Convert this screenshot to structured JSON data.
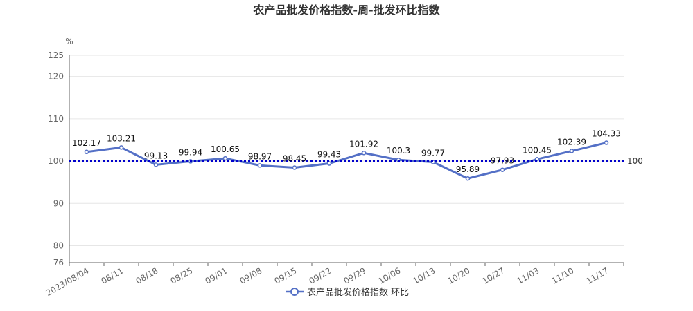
{
  "chart_data": {
    "type": "line",
    "title": "农产品批发价格指数-周-批发环比指数",
    "ylabel": "%",
    "ylim": [
      76,
      125
    ],
    "yticks": [
      76,
      80,
      90,
      100,
      110,
      120,
      125
    ],
    "categories": [
      "2023/08/04",
      "08/11",
      "08/18",
      "08/25",
      "09/01",
      "09/08",
      "09/15",
      "09/22",
      "09/29",
      "10/06",
      "10/13",
      "10/20",
      "10/27",
      "11/03",
      "11/10",
      "11/17"
    ],
    "series": [
      {
        "name": "农产品批发价格指数 环比",
        "color": "#5470c6",
        "values": [
          102.17,
          103.21,
          99.13,
          99.94,
          100.65,
          98.97,
          98.45,
          99.43,
          101.92,
          100.3,
          99.77,
          95.89,
          97.93,
          100.45,
          102.39,
          104.33
        ],
        "labels": [
          "102.17",
          "103.21",
          "99.13",
          "99.94",
          "100.65",
          "98.97",
          "98.45",
          "99.43",
          "101.92",
          "100.3",
          "99.77",
          "95.89",
          "97.93",
          "100.45",
          "102.39",
          "104.33"
        ]
      }
    ],
    "reference_line": {
      "value": 100,
      "label": "100",
      "color": "#0000cc"
    },
    "grid": true,
    "legend_position": "bottom"
  }
}
